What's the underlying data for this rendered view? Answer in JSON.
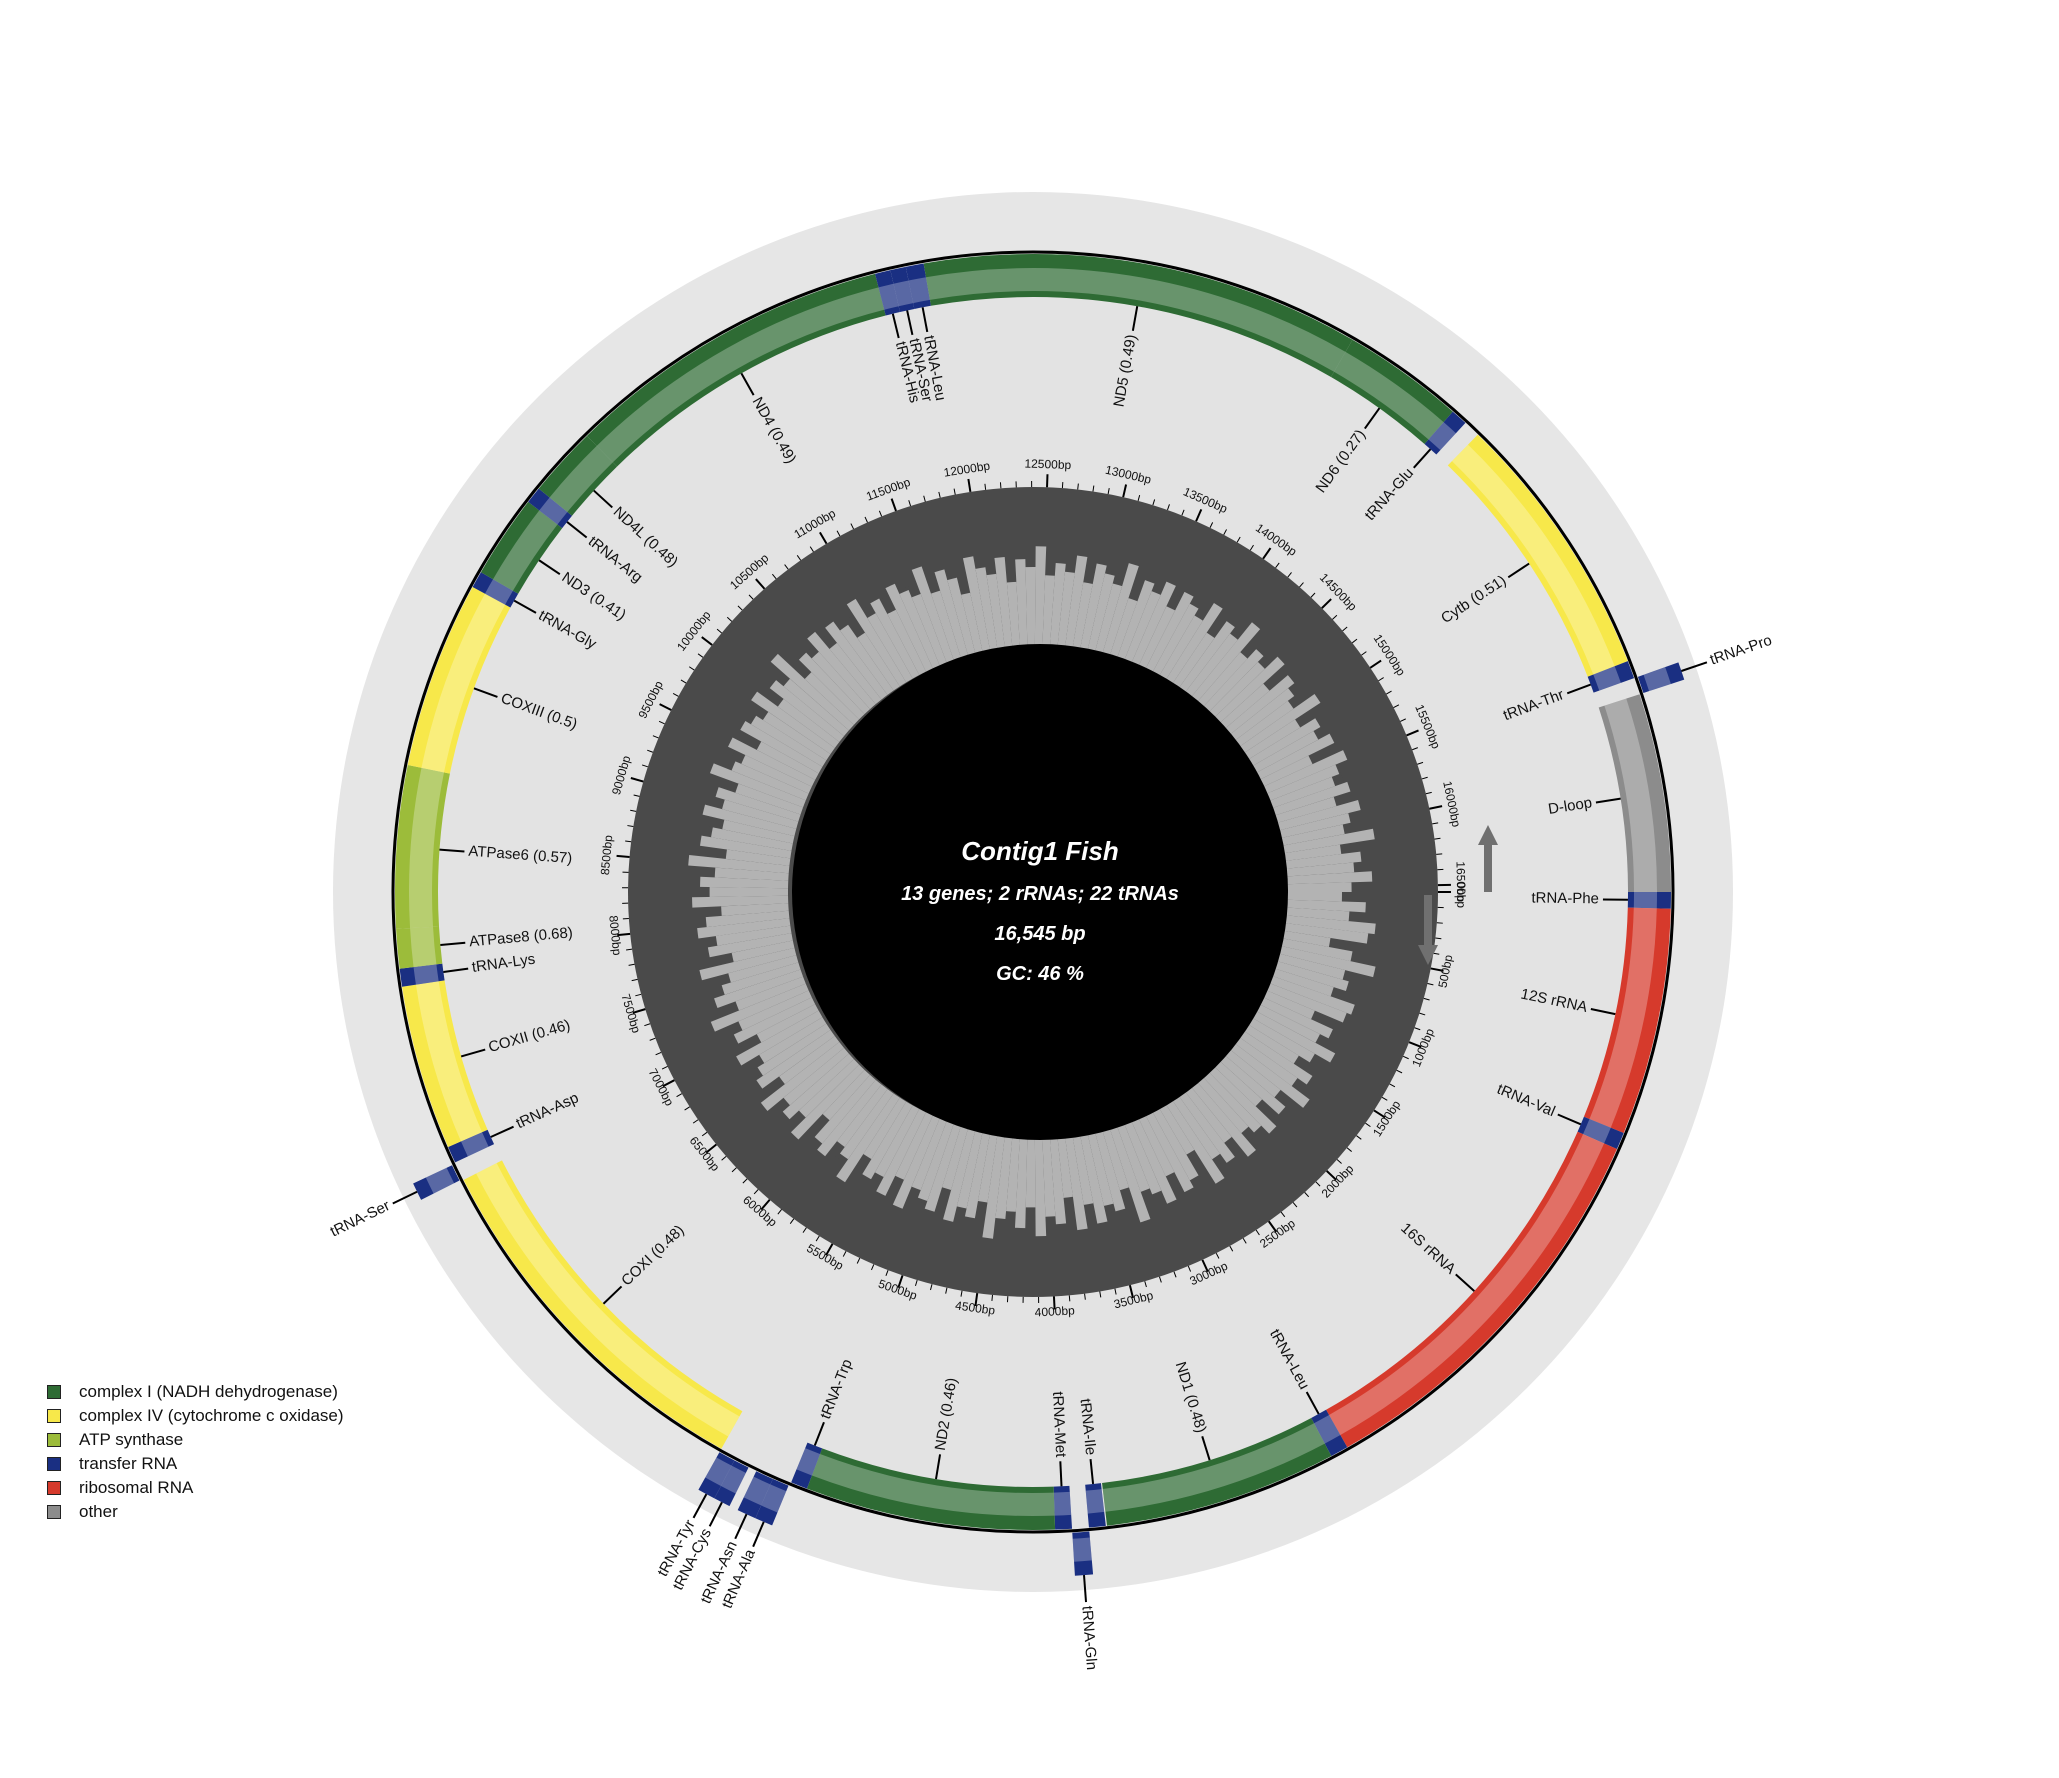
{
  "title": "Contig1 Fish",
  "subtitle": "13 genes; 2 rRNAs; 22 tRNAs",
  "length_label": "16,545 bp",
  "gc_label": "GC: 46 %",
  "genome_length": 16545,
  "colors": {
    "complex1": "#2e6b34",
    "complex4": "#f7e84a",
    "atp": "#9cbc3a",
    "trna": "#1a2f82",
    "rrna": "#d63a2c",
    "other": "#8c8c8c"
  },
  "legend": [
    {
      "label": "complex I (NADH dehydrogenase)",
      "color": "#2e6b34"
    },
    {
      "label": "complex IV (cytochrome c oxidase)",
      "color": "#f7e84a"
    },
    {
      "label": "ATP synthase",
      "color": "#9cbc3a"
    },
    {
      "label": "transfer RNA",
      "color": "#1a2f82"
    },
    {
      "label": "ribosomal RNA",
      "color": "#d63a2c"
    },
    {
      "label": "other",
      "color": "#8c8c8c"
    }
  ],
  "features": [
    {
      "name": "tRNA-Phe",
      "start": 0,
      "end": 69,
      "strand": "+",
      "type": "trna"
    },
    {
      "name": "12S rRNA",
      "start": 69,
      "end": 1020,
      "strand": "+",
      "type": "rrna"
    },
    {
      "name": "tRNA-Val",
      "start": 1020,
      "end": 1092,
      "strand": "+",
      "type": "trna"
    },
    {
      "name": "16S rRNA",
      "start": 1092,
      "end": 2780,
      "strand": "+",
      "type": "rrna"
    },
    {
      "name": "tRNA-Leu",
      "start": 2780,
      "end": 2855,
      "strand": "+",
      "type": "trna"
    },
    {
      "name": "ND1 (0.48)",
      "start": 2855,
      "end": 3830,
      "strand": "+",
      "type": "complex1"
    },
    {
      "name": "tRNA-Ile",
      "start": 3835,
      "end": 3905,
      "strand": "+",
      "type": "trna"
    },
    {
      "name": "tRNA-Gln",
      "start": 3905,
      "end": 3975,
      "strand": "-",
      "type": "trna"
    },
    {
      "name": "tRNA-Met",
      "start": 3975,
      "end": 4045,
      "strand": "+",
      "type": "trna"
    },
    {
      "name": "ND2 (0.46)",
      "start": 4045,
      "end": 5090,
      "strand": "+",
      "type": "complex1"
    },
    {
      "name": "tRNA-Trp",
      "start": 5090,
      "end": 5160,
      "strand": "+",
      "type": "trna"
    },
    {
      "name": "tRNA-Ala",
      "start": 5165,
      "end": 5235,
      "strand": "-",
      "type": "trna"
    },
    {
      "name": "tRNA-Asn",
      "start": 5235,
      "end": 5310,
      "strand": "-",
      "type": "trna"
    },
    {
      "name": "tRNA-Cys",
      "start": 5345,
      "end": 5410,
      "strand": "-",
      "type": "trna"
    },
    {
      "name": "tRNA-Tyr",
      "start": 5410,
      "end": 5480,
      "strand": "-",
      "type": "trna"
    },
    {
      "name": "COXI (0.48)",
      "start": 5480,
      "end": 7040,
      "strand": "+",
      "type": "complex4"
    },
    {
      "name": "tRNA-Ser",
      "start": 7045,
      "end": 7115,
      "strand": "-",
      "type": "trna"
    },
    {
      "name": "tRNA-Asp",
      "start": 7120,
      "end": 7190,
      "strand": "+",
      "type": "trna"
    },
    {
      "name": "COXII (0.46)",
      "start": 7190,
      "end": 7880,
      "strand": "+",
      "type": "complex4"
    },
    {
      "name": "tRNA-Lys",
      "start": 7880,
      "end": 7955,
      "strand": "+",
      "type": "trna"
    },
    {
      "name": "ATPase8 (0.68)",
      "start": 7955,
      "end": 8120,
      "strand": "+",
      "type": "atp"
    },
    {
      "name": "ATPase6 (0.57)",
      "start": 8120,
      "end": 8800,
      "strand": "+",
      "type": "atp"
    },
    {
      "name": "COXIII (0.5)",
      "start": 8800,
      "end": 9585,
      "strand": "+",
      "type": "complex4"
    },
    {
      "name": "tRNA-Gly",
      "start": 9585,
      "end": 9655,
      "strand": "+",
      "type": "trna"
    },
    {
      "name": "ND3 (0.41)",
      "start": 9655,
      "end": 10005,
      "strand": "+",
      "type": "complex1"
    },
    {
      "name": "tRNA-Arg",
      "start": 10005,
      "end": 10075,
      "strand": "+",
      "type": "trna"
    },
    {
      "name": "ND4L (0.48)",
      "start": 10075,
      "end": 10370,
      "strand": "+",
      "type": "complex1"
    },
    {
      "name": "ND4 (0.49)",
      "start": 10370,
      "end": 11750,
      "strand": "+",
      "type": "complex1"
    },
    {
      "name": "tRNA-His",
      "start": 11750,
      "end": 11815,
      "strand": "+",
      "type": "trna"
    },
    {
      "name": "tRNA-Ser",
      "start": 11815,
      "end": 11880,
      "strand": "+",
      "type": "trna"
    },
    {
      "name": "tRNA-Leu",
      "start": 11880,
      "end": 11955,
      "strand": "+",
      "type": "trna"
    },
    {
      "name": "ND5 (0.49)",
      "start": 11955,
      "end": 13790,
      "strand": "+",
      "type": "complex1"
    },
    {
      "name": "ND6 (0.27)",
      "start": 13790,
      "end": 14300,
      "strand": "+",
      "type": "complex1"
    },
    {
      "name": "tRNA-Glu",
      "start": 14300,
      "end": 14370,
      "strand": "+",
      "type": "trna"
    },
    {
      "name": "Cytb (0.51)",
      "start": 14440,
      "end": 15570,
      "strand": "+",
      "type": "complex4"
    },
    {
      "name": "tRNA-Thr",
      "start": 15570,
      "end": 15645,
      "strand": "+",
      "type": "trna"
    },
    {
      "name": "tRNA-Pro",
      "start": 15645,
      "end": 15715,
      "strand": "-",
      "type": "trna"
    },
    {
      "name": "D-loop",
      "start": 15715,
      "end": 16545,
      "strand": "+",
      "type": "other"
    }
  ],
  "ticks": [
    "500bp",
    "1000bp",
    "1500bp",
    "2000bp",
    "2500bp",
    "3000bp",
    "3500bp",
    "4000bp",
    "4500bp",
    "5000bp",
    "5500bp",
    "6000bp",
    "6500bp",
    "7000bp",
    "7500bp",
    "8000bp",
    "8500bp",
    "9000bp",
    "9500bp",
    "10000bp",
    "10500bp",
    "11000bp",
    "11500bp",
    "12000bp",
    "12500bp",
    "13000bp",
    "13500bp",
    "14000bp",
    "14500bp",
    "15000bp",
    "15500bp",
    "16000bp",
    "16500bp"
  ],
  "tick_values": [
    500,
    1000,
    1500,
    2000,
    2500,
    3000,
    3500,
    4000,
    4500,
    5000,
    5500,
    6000,
    6500,
    7000,
    7500,
    8000,
    8500,
    9000,
    9500,
    10000,
    10500,
    11000,
    11500,
    12000,
    12500,
    13000,
    13500,
    14000,
    14500,
    15000,
    15500,
    16000,
    16500
  ],
  "origin_label": "0bp",
  "gc_skew": [
    0.4,
    0.55,
    0.45,
    0.62,
    0.58,
    0.35,
    0.5,
    0.66,
    0.48,
    0.52,
    0.44,
    0.6,
    0.57,
    0.38,
    0.53,
    0.47,
    0.61,
    0.5,
    0.42,
    0.56,
    0.49,
    0.63,
    0.45,
    0.54,
    0.4,
    0.58,
    0.51,
    0.46,
    0.6,
    0.44,
    0.55,
    0.48,
    0.62,
    0.37,
    0.52,
    0.57,
    0.43,
    0.59,
    0.5,
    0.46,
    0.64,
    0.41,
    0.53,
    0.48,
    0.58,
    0.45,
    0.6,
    0.39,
    0.55,
    0.5,
    0.62,
    0.44,
    0.57,
    0.47,
    0.52,
    0.65,
    0.43,
    0.54,
    0.49,
    0.59,
    0.4,
    0.56,
    0.51,
    0.46,
    0.61,
    0.44,
    0.58,
    0.48,
    0.53,
    0.42,
    0.63,
    0.5,
    0.45,
    0.57,
    0.52,
    0.38,
    0.6,
    0.47,
    0.55,
    0.49,
    0.62,
    0.43,
    0.56,
    0.51,
    0.46,
    0.59,
    0.41,
    0.54,
    0.48,
    0.64,
    0.45,
    0.57,
    0.5,
    0.44,
    0.61,
    0.39,
    0.53,
    0.47,
    0.58,
    0.52,
    0.42,
    0.6,
    0.49,
    0.55,
    0.46,
    0.63,
    0.4,
    0.57,
    0.51,
    0.45,
    0.59,
    0.48,
    0.54,
    0.43,
    0.62,
    0.5,
    0.46,
    0.58,
    0.41,
    0.56,
    0.52,
    0.47,
    0.6,
    0.44,
    0.55,
    0.49,
    0.65,
    0.42,
    0.53,
    0.48,
    0.59,
    0.45,
    0.57,
    0.5,
    0.4,
    0.61,
    0.47,
    0.54,
    0.43,
    0.58,
    0.51,
    0.46,
    0.62,
    0.44,
    0.56,
    0.49,
    0.38,
    0.6,
    0.52,
    0.47,
    0.57,
    0.41,
    0.55,
    0.5,
    0.63,
    0.45,
    0.53,
    0.48,
    0.59,
    0.43,
    0.56,
    0.51,
    0.46,
    0.61,
    0.4,
    0.54,
    0.49,
    0.58,
    0.44,
    0.57,
    0.52,
    0.47,
    0.6,
    0.42,
    0.55,
    0.5,
    0.64,
    0.45,
    0.53,
    0.48,
    0.59,
    0.41,
    0.56,
    0.51,
    0.46,
    0.62,
    0.43,
    0.54,
    0.49,
    0.57,
    0.39,
    0.6,
    0.52,
    0.47,
    0.55,
    0.44,
    0.58,
    0.5,
    0.45,
    0.63,
    0.41,
    0.53,
    0.48,
    0.59,
    0.46
  ]
}
